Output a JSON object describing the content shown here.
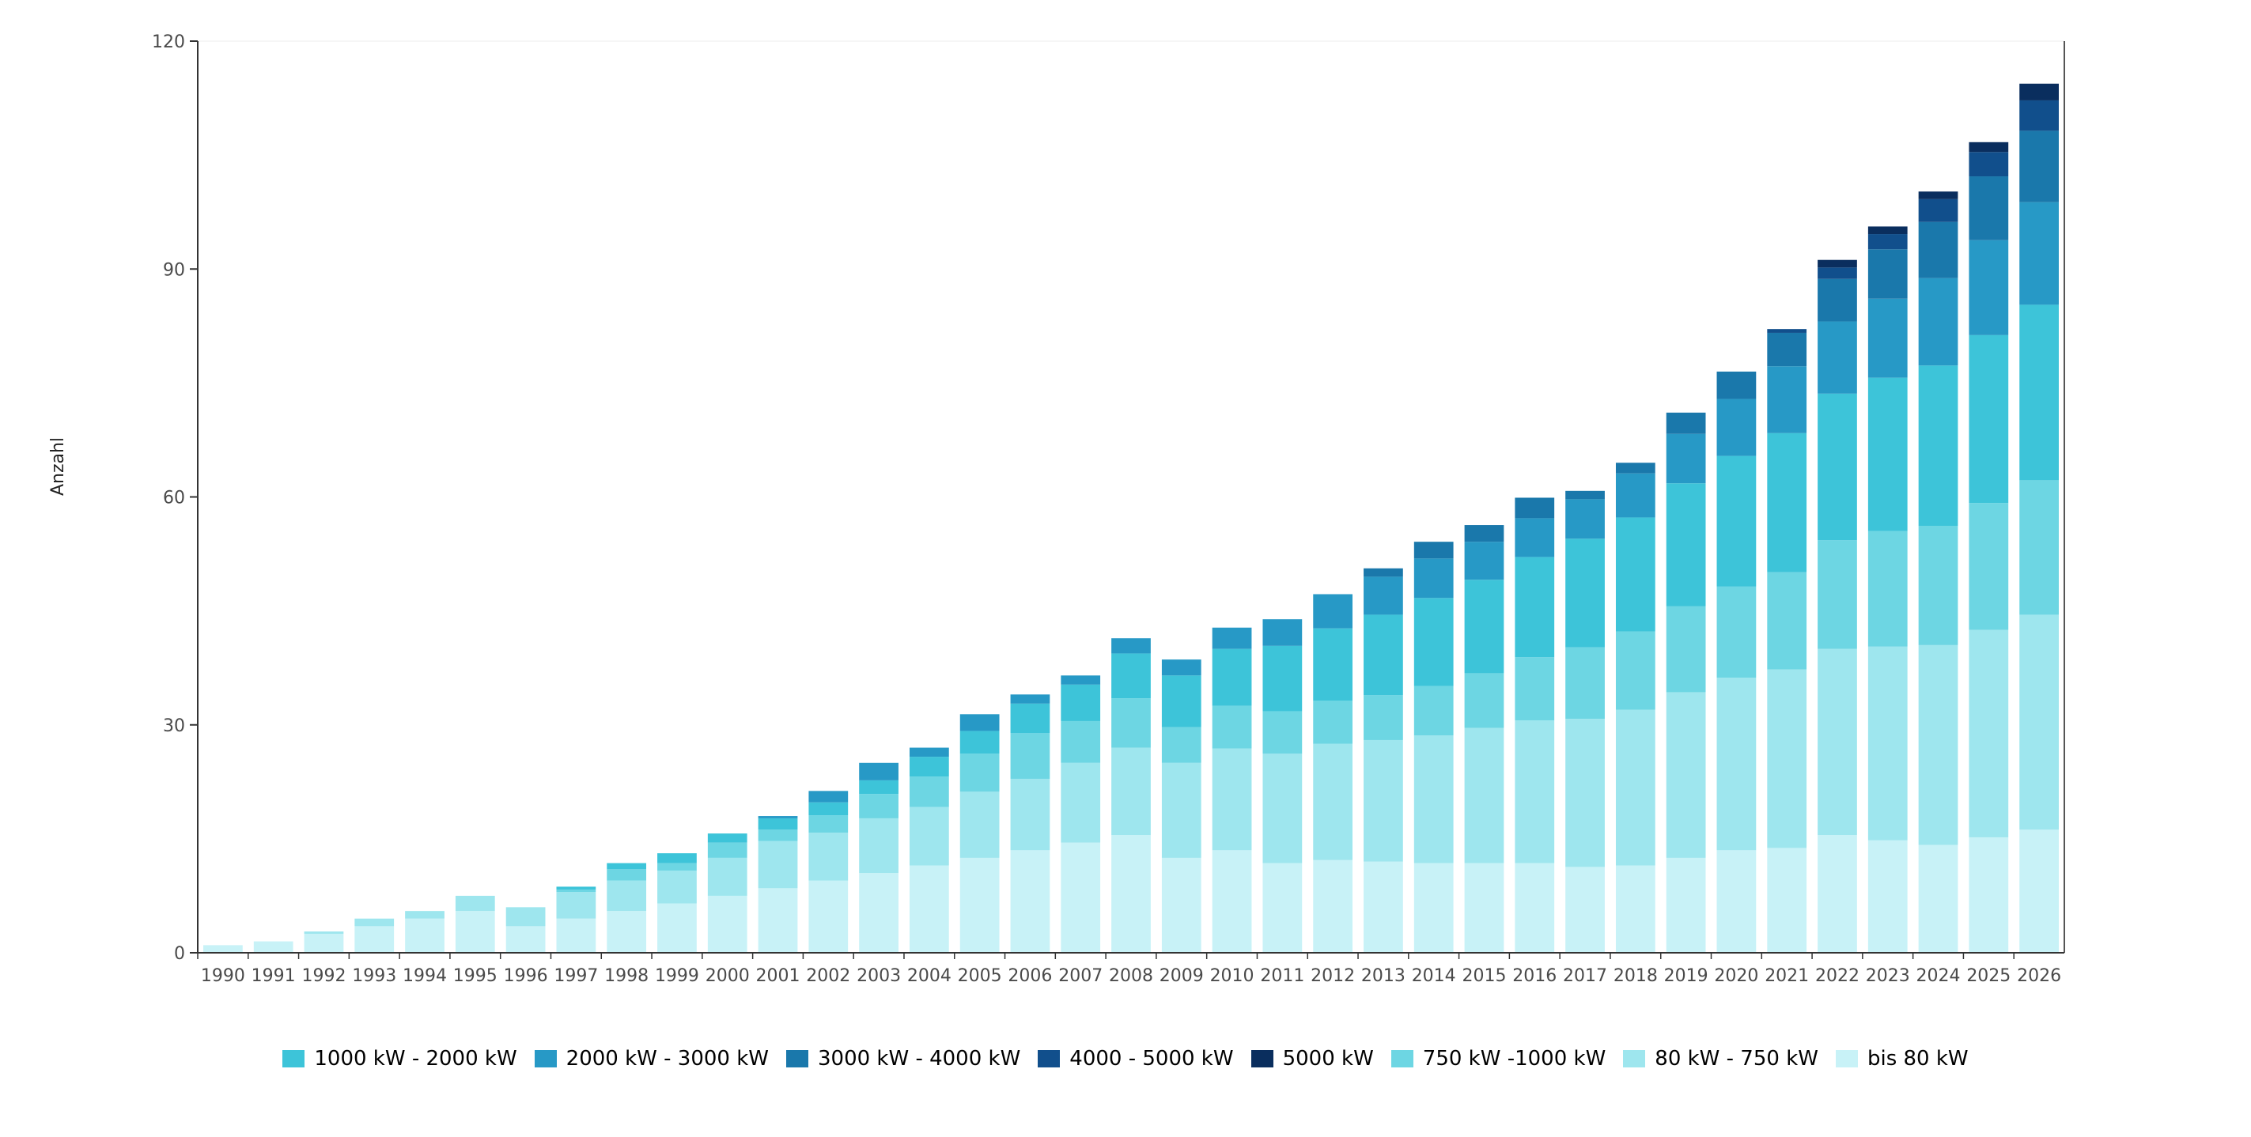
{
  "chart_data": {
    "type": "bar",
    "stacked": true,
    "ylabel": "Anzahl",
    "xlabel": "",
    "title": "",
    "ylim": [
      0,
      120
    ],
    "yticks": [
      0,
      30,
      60,
      90,
      120
    ],
    "grid": false,
    "legend_position": "bottom",
    "categories": [
      "1990",
      "1991",
      "1992",
      "1993",
      "1994",
      "1995",
      "1996",
      "1997",
      "1998",
      "1999",
      "2000",
      "2001",
      "2002",
      "2003",
      "2004",
      "2005",
      "2006",
      "2007",
      "2008",
      "2009",
      "2010",
      "2011",
      "2012",
      "2013",
      "2014",
      "2015",
      "2016",
      "2017",
      "2018",
      "2019",
      "2020",
      "2021",
      "2022",
      "2023",
      "2024",
      "2025",
      "2026"
    ],
    "series": [
      {
        "name": "bis 80 kW",
        "color": "#c8f2f7",
        "values": [
          1,
          1.5,
          2.5,
          3.5,
          4.5,
          5.5,
          3.5,
          4.5,
          5.5,
          6.5,
          7.5,
          8.5,
          9.5,
          10.5,
          11.5,
          12.5,
          13.5,
          14.5,
          15.5,
          12.5,
          13.5,
          11.8,
          12.2,
          12,
          11.8,
          11.8,
          11.8,
          11.3,
          11.5,
          12.5,
          13.5,
          13.8,
          15.5,
          14.8,
          14.2,
          15.2,
          16.2
        ]
      },
      {
        "name": "80 kW - 750 kW",
        "color": "#9ee6ee",
        "values": [
          0,
          0,
          0.3,
          1,
          1,
          2,
          2.5,
          3.5,
          4,
          4.3,
          5,
          6.2,
          6.3,
          7.2,
          7.7,
          8.7,
          9.4,
          10.5,
          11.5,
          12.5,
          13.4,
          14.4,
          15.3,
          16,
          16.8,
          17.8,
          18.8,
          19.5,
          20.5,
          21.8,
          22.7,
          23.5,
          24.5,
          25.5,
          26.3,
          27.3,
          28.3
        ]
      },
      {
        "name": "750 kW -1000 kW",
        "color": "#6dd6e3",
        "values": [
          0,
          0,
          0,
          0,
          0,
          0,
          0,
          0.3,
          1.5,
          1,
          2,
          1.5,
          2.3,
          3.2,
          4,
          5,
          6,
          5.5,
          6.5,
          4.7,
          5.6,
          5.6,
          5.7,
          5.9,
          6.5,
          7.2,
          8.3,
          9.4,
          10.3,
          11.3,
          12,
          12.8,
          14.3,
          15.2,
          15.7,
          16.7,
          17.7
        ]
      },
      {
        "name": "1000 kW - 2000 kW",
        "color": "#3dc4d9",
        "values": [
          0,
          0,
          0,
          0,
          0,
          0,
          0,
          0.4,
          0.8,
          1.3,
          1.2,
          1.5,
          1.7,
          1.8,
          2.6,
          3,
          3.9,
          4.8,
          5.9,
          6.8,
          7.5,
          8.6,
          9.5,
          10.6,
          11.6,
          12.3,
          13.2,
          14.3,
          15,
          16.2,
          17.2,
          18.3,
          19.3,
          20.2,
          21.1,
          22.1,
          23.1
        ]
      },
      {
        "name": "2000 kW - 3000 kW",
        "color": "#2799c6",
        "values": [
          0,
          0,
          0,
          0,
          0,
          0,
          0,
          0,
          0,
          0,
          0,
          0.3,
          1.5,
          2.3,
          1.2,
          2.2,
          1.2,
          1.2,
          2,
          2.1,
          2.8,
          3.5,
          4.5,
          5,
          5.2,
          5,
          5.1,
          5.2,
          5.8,
          6.5,
          7.5,
          8.8,
          9.5,
          10.4,
          11.5,
          12.5,
          13.5
        ]
      },
      {
        "name": "3000 kW - 4000 kW",
        "color": "#1a78ab",
        "values": [
          0,
          0,
          0,
          0,
          0,
          0,
          0,
          0,
          0,
          0,
          0,
          0,
          0,
          0,
          0,
          0,
          0,
          0,
          0,
          0,
          0,
          0,
          0,
          1.1,
          2.2,
          2.2,
          2.7,
          1.1,
          1.4,
          2.8,
          3.6,
          4.4,
          5.6,
          6.5,
          7.4,
          8.4,
          9.4
        ]
      },
      {
        "name": "4000 - 5000 kW",
        "color": "#114f8c",
        "values": [
          0,
          0,
          0,
          0,
          0,
          0,
          0,
          0,
          0,
          0,
          0,
          0,
          0,
          0,
          0,
          0,
          0,
          0,
          0,
          0,
          0,
          0,
          0,
          0,
          0,
          0,
          0,
          0,
          0,
          0,
          0,
          0.5,
          1.5,
          2,
          3,
          3.2,
          4
        ]
      },
      {
        "name": "5000 kW",
        "color": "#0a2e5e",
        "values": [
          0,
          0,
          0,
          0,
          0,
          0,
          0,
          0,
          0,
          0,
          0,
          0,
          0,
          0,
          0,
          0,
          0,
          0,
          0,
          0,
          0,
          0,
          0,
          0,
          0,
          0,
          0,
          0,
          0,
          0,
          0,
          0,
          1,
          1,
          1,
          1.3,
          2.2
        ]
      }
    ],
    "legend_order": [
      "1000 kW - 2000 kW",
      "2000 kW - 3000 kW",
      "3000 kW - 4000 kW",
      "4000 - 5000 kW",
      "5000 kW",
      "750 kW -1000 kW",
      "80 kW - 750 kW",
      "bis 80 kW"
    ]
  }
}
